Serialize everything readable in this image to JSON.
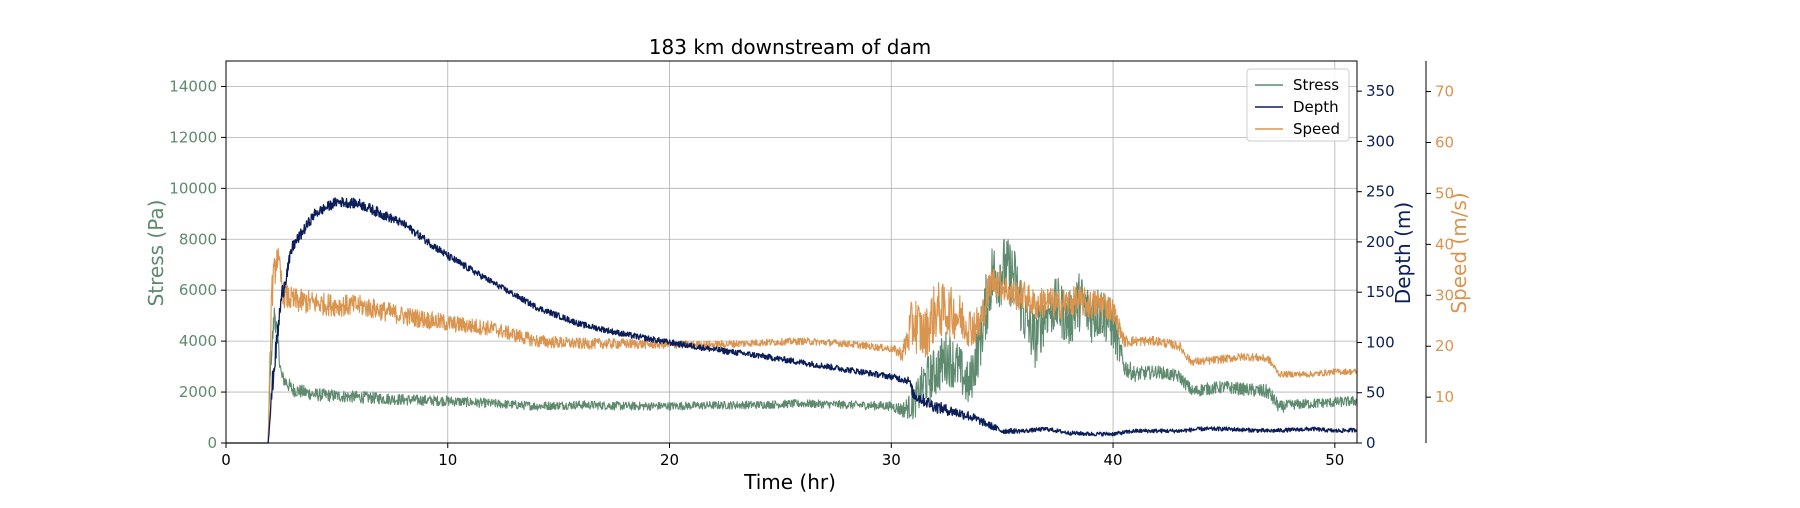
{
  "chart_data": {
    "type": "line",
    "title": "183 km downstream of dam",
    "xlabel": "Time (hr)",
    "xlim": [
      0,
      51
    ],
    "xticks": [
      0,
      10,
      20,
      30,
      40,
      50
    ],
    "grid": true,
    "legend_position": "top-right",
    "axes": {
      "stress": {
        "label": "Stress (Pa)",
        "color": "#5e8a6f",
        "lim": [
          0,
          15000
        ],
        "ticks": [
          0,
          2000,
          4000,
          6000,
          8000,
          10000,
          12000,
          14000
        ]
      },
      "depth": {
        "label": "Depth (m)",
        "color": "#0c1e5a",
        "lim": [
          0,
          380
        ],
        "ticks": [
          0,
          50,
          100,
          150,
          200,
          250,
          300,
          350
        ]
      },
      "speed": {
        "label": "Speed (m/s)",
        "color": "#d9954f",
        "lim": [
          1,
          76
        ],
        "ticks": [
          10,
          20,
          30,
          40,
          50,
          60,
          70
        ]
      }
    },
    "series": [
      {
        "name": "Stress",
        "axis": "stress",
        "color": "#5e8a6f",
        "x": [
          0,
          1.9,
          2.0,
          2.2,
          2.5,
          3,
          4,
          5,
          6,
          8,
          10,
          12,
          14,
          16,
          18,
          20,
          22,
          24,
          26,
          28,
          30,
          30.5,
          31,
          31.5,
          32,
          32.5,
          33,
          33.5,
          34,
          34.5,
          35,
          35.5,
          36,
          36.5,
          37,
          37.5,
          38,
          38.5,
          39,
          39.5,
          40,
          40.5,
          41,
          42,
          43,
          43.6,
          44,
          45,
          46,
          47,
          47.5,
          48,
          49,
          50,
          51
        ],
        "y": [
          0,
          0,
          3000,
          5200,
          2600,
          2100,
          1900,
          1850,
          1800,
          1700,
          1650,
          1550,
          1450,
          1500,
          1450,
          1450,
          1480,
          1500,
          1550,
          1500,
          1450,
          1300,
          1500,
          2400,
          2800,
          3400,
          3000,
          2200,
          4000,
          6500,
          6800,
          6600,
          5000,
          4000,
          5200,
          5400,
          4800,
          5600,
          5000,
          5200,
          4500,
          3000,
          2700,
          2800,
          2600,
          2000,
          2100,
          2200,
          2100,
          2000,
          1400,
          1500,
          1550,
          1600,
          1650
        ],
        "noise": [
          0,
          0,
          400,
          600,
          300,
          280,
          260,
          240,
          240,
          220,
          200,
          180,
          170,
          170,
          170,
          160,
          160,
          160,
          160,
          160,
          180,
          300,
          600,
          900,
          1000,
          1100,
          1000,
          900,
          1200,
          1400,
          1400,
          1300,
          1200,
          1100,
          1100,
          1100,
          1100,
          1200,
          1100,
          1100,
          900,
          400,
          300,
          250,
          250,
          250,
          250,
          250,
          250,
          300,
          250,
          200,
          200,
          200,
          200
        ]
      },
      {
        "name": "Depth",
        "axis": "depth",
        "color": "#0c1e5a",
        "x": [
          0,
          1.9,
          2.1,
          2.5,
          3,
          4,
          5,
          6,
          7,
          8,
          10,
          12,
          14,
          16,
          18,
          20,
          22,
          24,
          26,
          28,
          30,
          30.8,
          31,
          32,
          33,
          33.5,
          34,
          35,
          36,
          37,
          38,
          39,
          40,
          41,
          42,
          43,
          44,
          45,
          46,
          47,
          48,
          49,
          50,
          51
        ],
        "y": [
          0,
          0,
          60,
          145,
          195,
          228,
          240,
          238,
          228,
          218,
          186,
          160,
          135,
          118,
          108,
          100,
          93,
          87,
          80,
          73,
          66,
          62,
          48,
          36,
          30,
          27,
          22,
          12,
          12,
          14,
          10,
          9,
          9,
          12,
          12,
          12,
          14,
          14,
          13,
          12,
          13,
          14,
          12,
          13
        ],
        "noise": [
          0,
          0,
          12,
          10,
          6,
          5,
          5,
          5,
          5,
          4,
          4,
          3,
          3,
          3,
          3,
          3,
          3,
          3,
          3,
          3,
          3,
          4,
          6,
          6,
          5,
          5,
          4,
          3,
          2,
          2,
          2,
          2,
          2,
          2,
          2,
          2,
          2,
          2,
          2,
          2,
          2,
          2,
          2,
          2
        ]
      },
      {
        "name": "Speed",
        "axis": "speed",
        "color": "#d9954f",
        "x": [
          0,
          1.9,
          2.05,
          2.3,
          2.6,
          3,
          4,
          5,
          6,
          7,
          8,
          10,
          12,
          14,
          16,
          18,
          20,
          22,
          24,
          26,
          28,
          30,
          30.5,
          31,
          31.5,
          32,
          32.5,
          33,
          33.5,
          34,
          34.5,
          35,
          35.5,
          36,
          36.5,
          37,
          37.5,
          38,
          38.5,
          39,
          39.5,
          40,
          40.5,
          41,
          42,
          43,
          43.5,
          44,
          45,
          46,
          47,
          47.5,
          48,
          49,
          50,
          51
        ],
        "y": [
          1,
          1,
          30,
          38,
          30,
          29,
          28.5,
          28,
          28,
          27,
          26,
          24.5,
          23.5,
          21,
          20.5,
          20.5,
          20.3,
          20.3,
          20.7,
          21,
          20.5,
          19.5,
          18.5,
          25,
          22,
          27,
          27,
          26,
          24,
          24,
          33,
          32,
          30,
          30,
          28,
          29,
          28,
          28.5,
          29,
          28,
          28.5,
          27,
          21,
          21,
          21,
          20,
          17,
          17,
          17.5,
          18,
          17.5,
          14.5,
          14.5,
          14.5,
          15,
          15
        ],
        "noise": [
          0,
          0,
          4,
          3,
          2.5,
          2.5,
          2.3,
          2.2,
          2.1,
          2.0,
          1.9,
          1.7,
          1.5,
          1.3,
          1.1,
          1.0,
          0.8,
          0.8,
          0.7,
          0.7,
          0.7,
          0.7,
          1.5,
          6,
          5,
          6,
          5,
          5,
          4,
          4,
          3,
          3,
          3,
          3,
          3,
          3,
          3,
          3,
          3,
          3,
          3,
          2.5,
          1.2,
          1,
          0.9,
          0.9,
          0.8,
          0.8,
          0.8,
          0.8,
          0.8,
          0.6,
          0.6,
          0.6,
          0.6,
          0.6
        ]
      }
    ]
  }
}
